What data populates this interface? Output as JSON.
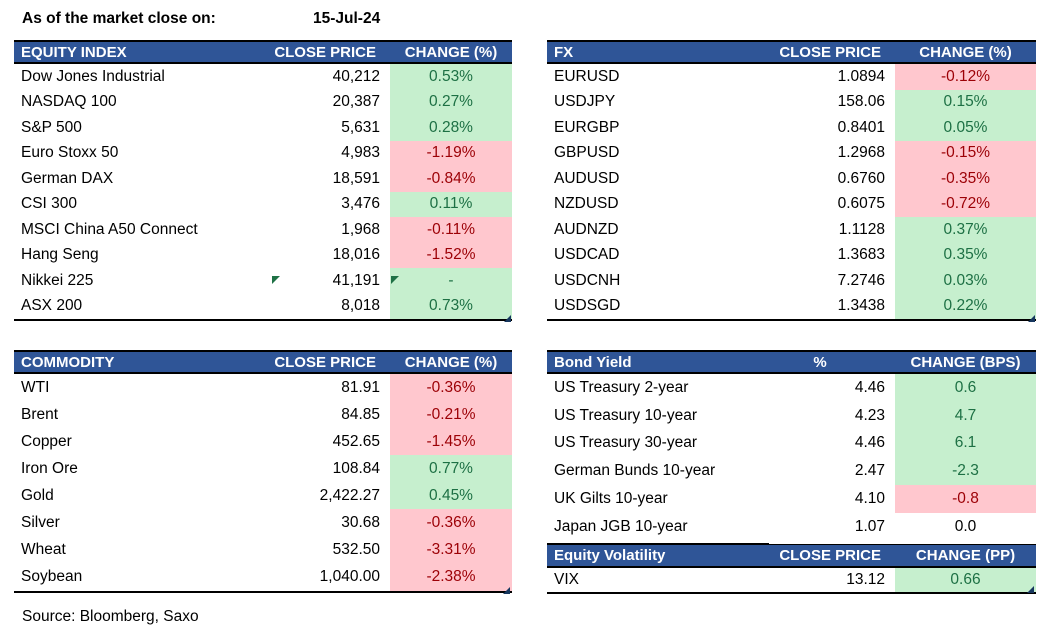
{
  "meta": {
    "as_of_label": "As of the market close on:",
    "as_of_date": "15-Jul-24",
    "source": "Source: Bloomberg, Saxo"
  },
  "colors": {
    "header_bg": "#2F5597",
    "header_text": "#FFFFFF",
    "positive_bg": "#C6EFCE",
    "positive_text": "#1D7044",
    "negative_bg": "#FFC7CE",
    "negative_text": "#9C0006",
    "border_black": "#000000",
    "error_indicator_green": "#1E7145",
    "corner_marker_blue": "#17375E"
  },
  "icons": [
    {
      "name": "cell-error-indicator-icon",
      "meaning": "excel green triangle on Nikkei 225 price cell"
    },
    {
      "name": "cell-error-indicator-icon",
      "meaning": "excel green triangle on Nikkei 225 change cell"
    },
    {
      "name": "table-corner-marker-icon",
      "meaning": "excel blue corner marker bottom-right of each table"
    }
  ],
  "chart_data": [
    {
      "id": "equity_index",
      "type": "table",
      "title": "EQUITY INDEX",
      "columns": [
        "EQUITY INDEX",
        "CLOSE PRICE",
        "CHANGE (%)"
      ],
      "rows": [
        [
          "Dow Jones Industrial",
          "40,212",
          "0.53%",
          "positive"
        ],
        [
          "NASDAQ 100",
          "20,387",
          "0.27%",
          "positive"
        ],
        [
          "S&P 500",
          "5,631",
          "0.28%",
          "positive"
        ],
        [
          "Euro Stoxx 50",
          "4,983",
          "-1.19%",
          "negative"
        ],
        [
          "German DAX",
          "18,591",
          "-0.84%",
          "negative"
        ],
        [
          "CSI 300",
          "3,476",
          "0.11%",
          "positive"
        ],
        [
          "MSCI China A50 Connect",
          "1,968",
          "-0.11%",
          "negative"
        ],
        [
          "Hang Seng",
          "18,016",
          "-1.52%",
          "negative"
        ],
        [
          "Nikkei 225",
          "41,191",
          "-",
          "positive"
        ],
        [
          "ASX 200",
          "8,018",
          "0.73%",
          "positive"
        ]
      ]
    },
    {
      "id": "fx",
      "type": "table",
      "title": "FX",
      "columns": [
        "FX",
        "CLOSE PRICE",
        "CHANGE (%)"
      ],
      "rows": [
        [
          "EURUSD",
          "1.0894",
          "-0.12%",
          "negative"
        ],
        [
          "USDJPY",
          "158.06",
          "0.15%",
          "positive"
        ],
        [
          "EURGBP",
          "0.8401",
          "0.05%",
          "positive"
        ],
        [
          "GBPUSD",
          "1.2968",
          "-0.15%",
          "negative"
        ],
        [
          "AUDUSD",
          "0.6760",
          "-0.35%",
          "negative"
        ],
        [
          "NZDUSD",
          "0.6075",
          "-0.72%",
          "negative"
        ],
        [
          "AUDNZD",
          "1.1128",
          "0.37%",
          "positive"
        ],
        [
          "USDCAD",
          "1.3683",
          "0.35%",
          "positive"
        ],
        [
          "USDCNH",
          "7.2746",
          "0.03%",
          "positive"
        ],
        [
          "USDSGD",
          "1.3438",
          "0.22%",
          "positive"
        ]
      ]
    },
    {
      "id": "commodity",
      "type": "table",
      "title": "COMMODITY",
      "columns": [
        "COMMODITY",
        "CLOSE PRICE",
        "CHANGE (%)"
      ],
      "rows": [
        [
          "WTI",
          "81.91",
          "-0.36%",
          "negative"
        ],
        [
          "Brent",
          "84.85",
          "-0.21%",
          "negative"
        ],
        [
          "Copper",
          "452.65",
          "-1.45%",
          "negative"
        ],
        [
          "Iron Ore",
          "108.84",
          "0.77%",
          "positive"
        ],
        [
          "Gold",
          "2,422.27",
          "0.45%",
          "positive"
        ],
        [
          "Silver",
          "30.68",
          "-0.36%",
          "negative"
        ],
        [
          "Wheat",
          "532.50",
          "-3.31%",
          "negative"
        ],
        [
          "Soybean",
          "1,040.00",
          "-2.38%",
          "negative"
        ]
      ]
    },
    {
      "id": "bond_yield",
      "type": "table",
      "title": "Bond Yield",
      "columns": [
        "Bond Yield",
        "%",
        "CHANGE (BPS)"
      ],
      "rows": [
        [
          "US Treasury 2-year",
          "4.46",
          "0.6",
          "positive"
        ],
        [
          "US Treasury 10-year",
          "4.23",
          "4.7",
          "positive"
        ],
        [
          "US Treasury 30-year",
          "4.46",
          "6.1",
          "positive"
        ],
        [
          "German Bunds 10-year",
          "2.47",
          "-2.3",
          "positive"
        ],
        [
          "UK Gilts 10-year",
          "4.10",
          "-0.8",
          "negative"
        ],
        [
          "Japan JGB 10-year",
          "1.07",
          "0.0",
          "neutral"
        ]
      ]
    },
    {
      "id": "equity_volatility",
      "type": "table",
      "title": "Equity Volatility",
      "columns": [
        "Equity Volatility",
        "CLOSE PRICE",
        "CHANGE (PP)"
      ],
      "rows": [
        [
          "VIX",
          "13.12",
          "0.66",
          "positive"
        ]
      ]
    }
  ]
}
